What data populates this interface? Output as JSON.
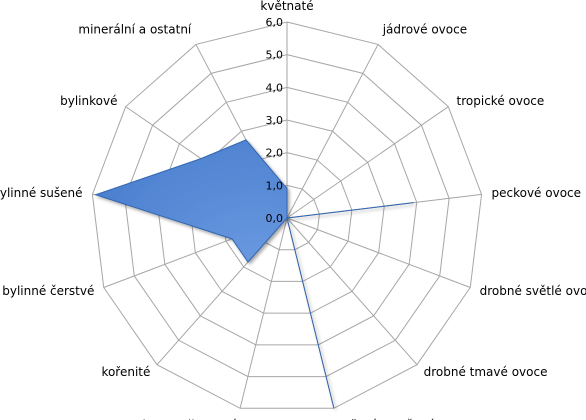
{
  "chart_data": {
    "type": "radar",
    "categories": [
      "květnaté",
      "jádrové ovoce",
      "tropické ovoce",
      "peckové ovoce",
      "drobné světlé ovoce",
      "drobné tmavé ovoce",
      "vařené a sušené ovoce",
      "karamelizované",
      "kořenité",
      "bylinné čerstvé",
      "bylinné sušené",
      "bylinkové",
      "minerální a ostatní"
    ],
    "series": [
      {
        "values": [
          0.9,
          0.0,
          0.0,
          3.9,
          0.0,
          0.0,
          6.0,
          0.0,
          1.8,
          1.8,
          5.9,
          3.2,
          2.7
        ]
      }
    ],
    "rlim": [
      0,
      6
    ],
    "ticks": [
      "0,0",
      "1,0",
      "2,0",
      "3,0",
      "4,0",
      "5,0",
      "6,0"
    ],
    "series_color": "#4a7fcf",
    "series_edge": "#3366b0",
    "grid_color": "#a6a6a6",
    "legend": "none"
  }
}
